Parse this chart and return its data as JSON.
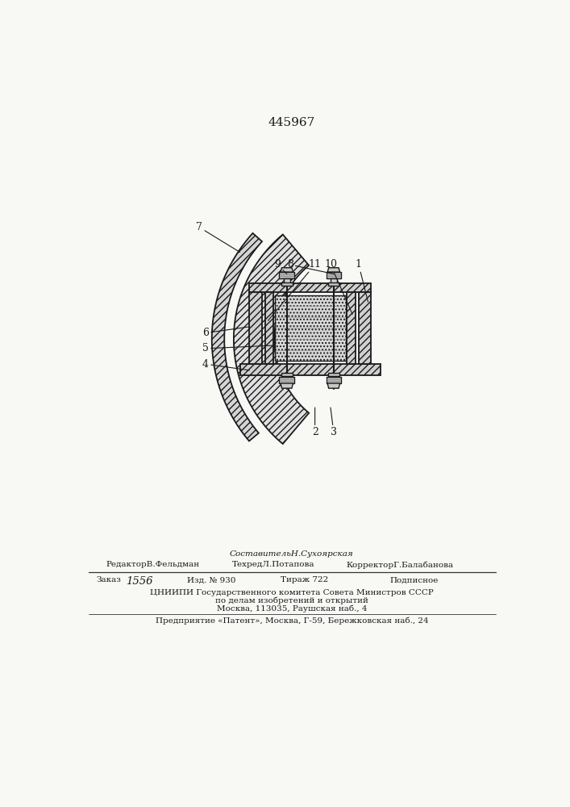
{
  "patent_number": "445967",
  "sestavitel": "СоставительН.Сухоярская",
  "redaktor": "РедакторВ.Фельдман",
  "tehred": "ТехредЛ.Потапова",
  "korrektor": "КорректорГ.Балабанова",
  "zakaz_label": "Заказ",
  "zakaz_val": "1556",
  "izd_label": "Изд. №",
  "izd_val": "930",
  "tiraj_label": "Тираж",
  "tiraj_val": "722",
  "podpisnoe": "Подписное",
  "cniipi_line1": "ЦНИИПИ Государственного комитета Совета Министров СССР",
  "cniipi_line2": "по делам изобретений и открытий",
  "cniipi_line3": "Москва, 113035, Раушская наб., 4",
  "predpriyatie": "Предприятие «Патент», Москва, Г-59, Бережковская наб., 24",
  "bg_color": "#f8f8f5",
  "line_color": "#1a1a1a",
  "labels": [
    "7",
    "6",
    "5",
    "4",
    "9",
    "8",
    "11",
    "10",
    "1",
    "2",
    "3"
  ]
}
